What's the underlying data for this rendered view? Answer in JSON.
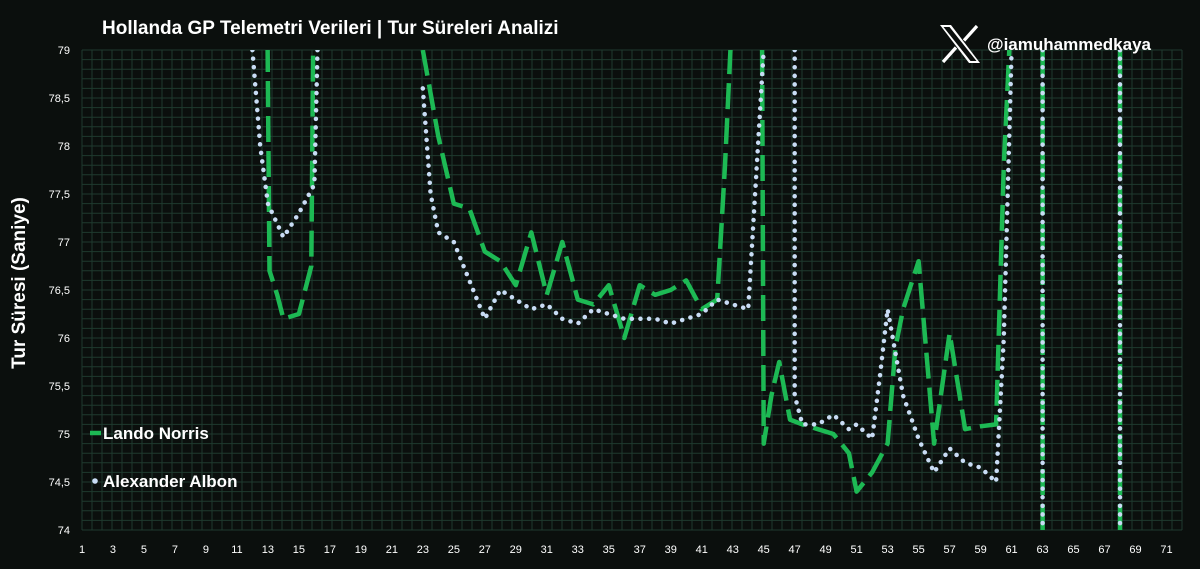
{
  "watermark": {
    "handle": "@iamuhammedkaya",
    "icon": "x-logo-icon"
  },
  "chart_data": {
    "type": "line",
    "title": "Hollanda GP Telemetri Verileri | Tur Süreleri Analizi",
    "ylabel": "Tur Süresi (Saniye)",
    "xlabel": "",
    "xlim": [
      1,
      72
    ],
    "ylim": [
      74,
      79
    ],
    "x_ticks": [
      1,
      3,
      5,
      7,
      9,
      11,
      13,
      15,
      17,
      19,
      21,
      23,
      25,
      27,
      29,
      31,
      33,
      35,
      37,
      39,
      41,
      43,
      45,
      47,
      49,
      51,
      53,
      55,
      57,
      59,
      61,
      63,
      65,
      67,
      69,
      71
    ],
    "y_ticks": [
      74,
      74.5,
      75,
      75.5,
      76,
      76.5,
      77,
      77.5,
      78,
      78.5,
      79
    ],
    "y_tick_labels": [
      "74",
      "74,5",
      "75",
      "75,5",
      "76",
      "76,5",
      "77",
      "77,5",
      "78",
      "78,5",
      "79"
    ],
    "legend_position": "bottom-left",
    "grid": true,
    "colors": {
      "background": "#0b0f0d",
      "grid": "#1f3a2e",
      "norris": "#1db954",
      "albon": "#c9dcf5"
    },
    "series": [
      {
        "name": "Lando Norris",
        "style": "dashed",
        "segments": [
          [
            [
              12.9,
              80.5
            ],
            [
              13.1,
              76.7
            ],
            [
              13.6,
              76.45
            ],
            [
              14.0,
              76.2
            ],
            [
              15.0,
              76.25
            ],
            [
              15.8,
              76.75
            ],
            [
              16.0,
              80.5
            ]
          ],
          [
            [
              23.0,
              79.0
            ],
            [
              24.0,
              78.1
            ],
            [
              25.0,
              77.4
            ],
            [
              26.0,
              77.35
            ],
            [
              27.0,
              76.9
            ],
            [
              28.0,
              76.8
            ],
            [
              29.0,
              76.55
            ],
            [
              30.0,
              77.1
            ],
            [
              31.0,
              76.45
            ],
            [
              32.0,
              77.0
            ],
            [
              33.0,
              76.4
            ],
            [
              34.0,
              76.35
            ],
            [
              35.0,
              76.55
            ],
            [
              36.0,
              76.0
            ],
            [
              37.0,
              76.55
            ],
            [
              38.0,
              76.45
            ],
            [
              39.0,
              76.5
            ],
            [
              40.0,
              76.6
            ],
            [
              41.0,
              76.3
            ],
            [
              42.0,
              76.4
            ],
            [
              42.5,
              77.8
            ],
            [
              43.0,
              79.5
            ]
          ],
          [
            [
              44.9,
              79.0
            ],
            [
              45.0,
              74.9
            ],
            [
              45.5,
              75.4
            ],
            [
              46.0,
              75.75
            ],
            [
              46.7,
              75.15
            ],
            [
              47.5,
              75.1
            ],
            [
              48.5,
              75.05
            ],
            [
              49.5,
              75.0
            ],
            [
              50.5,
              74.8
            ],
            [
              51.0,
              74.4
            ],
            [
              52.0,
              74.6
            ],
            [
              53.0,
              74.9
            ],
            [
              53.5,
              75.9
            ],
            [
              54.0,
              76.3
            ],
            [
              55.0,
              76.8
            ],
            [
              56.0,
              74.9
            ],
            [
              57.0,
              76.05
            ],
            [
              58.0,
              75.05
            ],
            [
              59.0,
              75.08
            ],
            [
              60.0,
              75.1
            ],
            [
              60.5,
              77.8
            ],
            [
              61.0,
              79.5
            ]
          ],
          [
            [
              63.0,
              74.0
            ],
            [
              63.0,
              79.0
            ]
          ],
          [
            [
              68.0,
              74.0
            ],
            [
              68.0,
              79.0
            ]
          ]
        ]
      },
      {
        "name": "Alexander Albon",
        "style": "dotted",
        "segments": [
          [
            [
              12.0,
              79.0
            ],
            [
              12.5,
              78.0
            ],
            [
              13.0,
              77.4
            ],
            [
              14.0,
              77.05
            ],
            [
              15.0,
              77.3
            ],
            [
              16.0,
              77.6
            ],
            [
              16.2,
              79.0
            ]
          ],
          [
            [
              23.0,
              78.6
            ],
            [
              23.5,
              77.5
            ],
            [
              24.0,
              77.1
            ],
            [
              25.0,
              77.0
            ],
            [
              26.0,
              76.6
            ],
            [
              27.0,
              76.2
            ],
            [
              28.0,
              76.5
            ],
            [
              29.0,
              76.4
            ],
            [
              30.0,
              76.3
            ],
            [
              31.0,
              76.35
            ],
            [
              32.0,
              76.2
            ],
            [
              33.0,
              76.15
            ],
            [
              34.0,
              76.3
            ],
            [
              35.0,
              76.25
            ],
            [
              36.0,
              76.2
            ],
            [
              37.0,
              76.2
            ],
            [
              38.0,
              76.2
            ],
            [
              39.0,
              76.15
            ],
            [
              40.0,
              76.2
            ],
            [
              41.0,
              76.25
            ],
            [
              42.0,
              76.4
            ],
            [
              43.0,
              76.35
            ],
            [
              44.0,
              76.3
            ],
            [
              45.0,
              79.0
            ]
          ],
          [
            [
              47.0,
              79.0
            ],
            [
              47.0,
              75.4
            ],
            [
              47.5,
              75.1
            ],
            [
              48.5,
              75.1
            ],
            [
              49.5,
              75.2
            ],
            [
              50.5,
              75.05
            ],
            [
              51.0,
              75.1
            ],
            [
              52.0,
              74.95
            ],
            [
              52.5,
              75.6
            ],
            [
              53.0,
              76.3
            ],
            [
              54.0,
              75.4
            ],
            [
              55.0,
              74.95
            ],
            [
              56.0,
              74.6
            ],
            [
              57.0,
              74.85
            ],
            [
              58.0,
              74.7
            ],
            [
              59.0,
              74.65
            ],
            [
              60.0,
              74.5
            ],
            [
              60.5,
              76.0
            ],
            [
              61.0,
              79.0
            ]
          ],
          [
            [
              63.0,
              79.0
            ],
            [
              63.0,
              74.0
            ]
          ],
          [
            [
              68.0,
              79.0
            ],
            [
              68.0,
              74.0
            ]
          ]
        ]
      }
    ]
  }
}
